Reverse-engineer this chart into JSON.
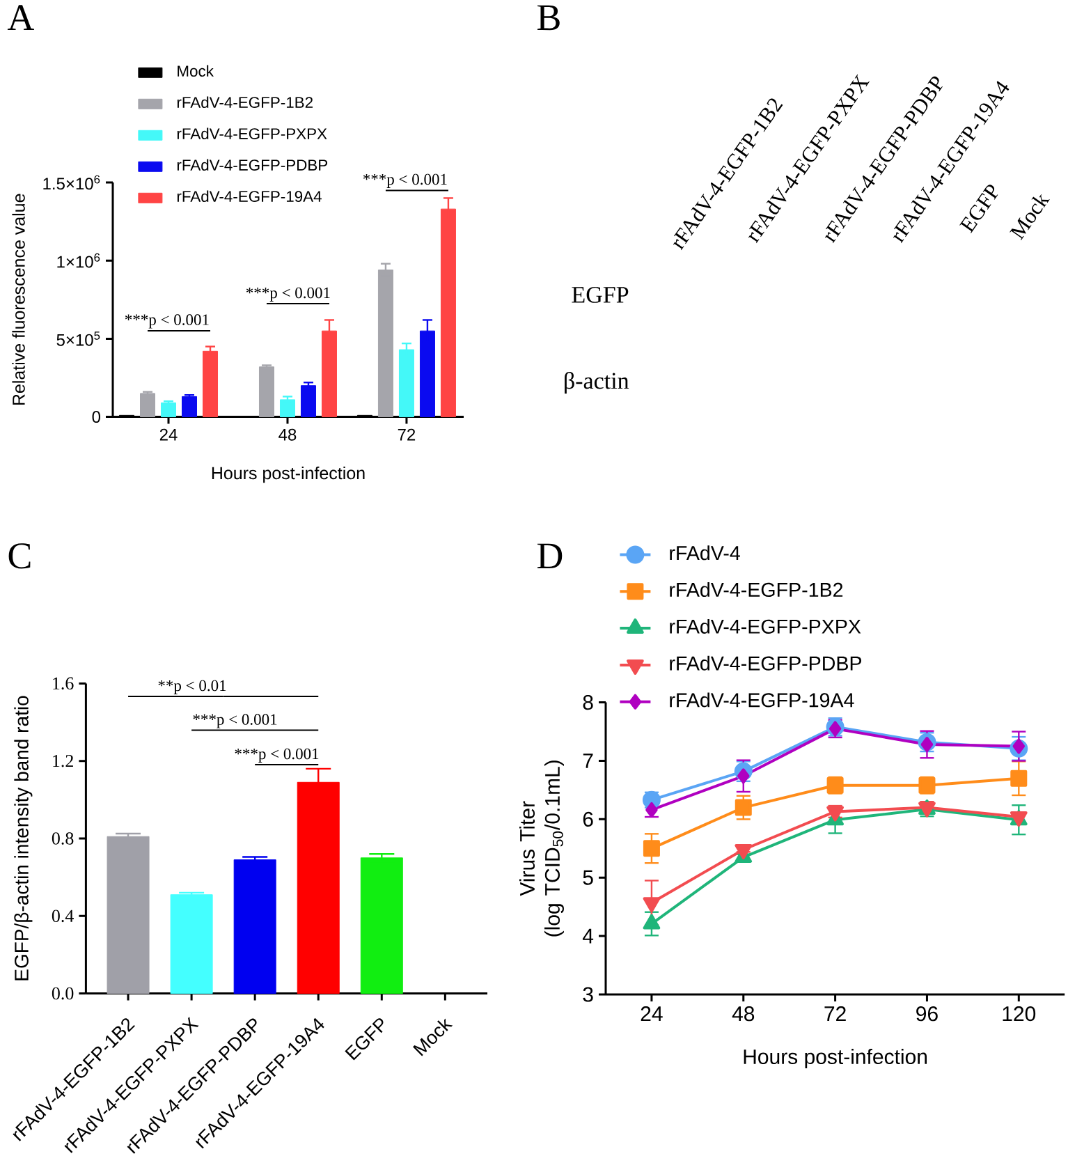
{
  "chart_data": [
    {
      "type": "bar",
      "title": "A",
      "xlabel": "Hours post-infection",
      "ylabel": "Relative fluorescence value",
      "categories": [
        "24",
        "48",
        "72"
      ],
      "series": [
        {
          "name": "Mock",
          "color": "#000000",
          "values": [
            10000,
            0,
            10000
          ]
        },
        {
          "name": "rFAdV-4-EGFP-1B2",
          "color": "#a5a5ab",
          "values": [
            150000,
            320000,
            940000
          ],
          "errors": [
            10000,
            10000,
            40000
          ]
        },
        {
          "name": "rFAdV-4-EGFP-PXPX",
          "color": "#44f8f8",
          "values": [
            90000,
            110000,
            430000
          ],
          "errors": [
            10000,
            20000,
            40000
          ]
        },
        {
          "name": "rFAdV-4-EGFP-PDBP",
          "color": "#0a0af0",
          "values": [
            130000,
            200000,
            550000
          ],
          "errors": [
            10000,
            20000,
            70000
          ]
        },
        {
          "name": "rFAdV-4-EGFP-19A4",
          "color": "#ff4444",
          "values": [
            420000,
            550000,
            1330000
          ],
          "errors": [
            30000,
            70000,
            70000
          ]
        }
      ],
      "ylim": [
        0,
        1500000
      ],
      "yticks": [
        0,
        {
          "value": 500000,
          "label": "5×10$^{5}$"
        },
        {
          "value": 1000000,
          "label": "1×10$^{6}$"
        },
        {
          "value": 1500000,
          "label": "1.5×10$^{6}$"
        }
      ],
      "legend": "top left",
      "annotations": [
        "***p < 0.001",
        "***p < 0.001",
        "***p < 0.001"
      ]
    },
    {
      "type": "other",
      "title": "B",
      "categories": [
        "rFAdV-4-EGFP-1B2",
        "rFAdV-4-EGFP-PXPX",
        "rFAdV-4-EGFP-PDBP",
        "rFAdV-4-EGFP-19A4",
        "EGFP",
        "Mock"
      ],
      "y_categories": [
        "EGFP",
        "β-actin"
      ]
    },
    {
      "type": "bar",
      "title": "C",
      "ylabel": "EGFP/β-actin intensity band ratio",
      "categories": [
        "rFAdV-4-EGFP-1B2",
        "rFAdV-4-EGFP-PXPX",
        "rFAdV-4-EGFP-PDBP",
        "rFAdV-4-EGFP-19A4",
        "EGFP",
        "Mock"
      ],
      "values": [
        0.81,
        0.51,
        0.69,
        1.09,
        0.7,
        0
      ],
      "colors": [
        "#a0a0a8",
        "#44ffff",
        "#0000f0",
        "#ff0000",
        "#11ee11",
        "#000000"
      ],
      "errors": [
        0.015,
        0.01,
        0.015,
        0.07,
        0.02,
        null
      ],
      "ylim": [
        0,
        1.6
      ],
      "yticks": [
        {
          "value": 0,
          "label": "0.0"
        },
        0.4,
        0.8,
        1.2,
        1.6
      ],
      "annotations": [
        "**p < 0.01",
        "***p < 0.001",
        "***p < 0.001"
      ]
    },
    {
      "type": "line",
      "title": "D",
      "xlabel": "Hours post-infection",
      "ylabel": "Virus Titer (log TCID$_{50}$/0.1mL)",
      "x": [
        24,
        48,
        72,
        96,
        120
      ],
      "xlim": [
        12,
        132
      ],
      "xticks": [
        24,
        48,
        72,
        96,
        120
      ],
      "ylim": [
        3,
        8
      ],
      "yticks": [
        3,
        4,
        5,
        6,
        7,
        8
      ],
      "legend": "top left",
      "series": [
        {
          "name": "rFAdV-4",
          "color": "#5aa5f5",
          "marker": "circle",
          "values": [
            6.33,
            6.82,
            7.58,
            7.32,
            7.21
          ],
          "errors": [
            0.13,
            0.17,
            0.15,
            0.16,
            0.2
          ]
        },
        {
          "name": "rFAdV-4-EGFP-1B2",
          "color": "#ff8c1a",
          "marker": "square",
          "values": [
            5.5,
            6.2,
            6.58,
            6.58,
            6.7
          ],
          "errors": [
            0.25,
            0.2,
            0.14,
            0.14,
            0.29
          ]
        },
        {
          "name": "rFAdV-4-EGFP-PXPX",
          "color": "#1fb57a",
          "marker": "triangle",
          "values": [
            4.21,
            5.35,
            5.99,
            6.17,
            5.99
          ],
          "errors": [
            0.2,
            0.05,
            0.23,
            0.12,
            0.25
          ]
        },
        {
          "name": "rFAdV-4-EGFP-PDBP",
          "color": "#f24c50",
          "marker": "triangle-down",
          "values": [
            4.57,
            5.48,
            6.13,
            6.2,
            6.04
          ],
          "errors": [
            0.38,
            0.04,
            0.1,
            0.1,
            null
          ]
        },
        {
          "name": "rFAdV-4-EGFP-19A4",
          "color": "#b000c0",
          "marker": "diamond",
          "values": [
            6.16,
            6.74,
            7.55,
            7.28,
            7.25
          ],
          "errors": [
            0.12,
            0.27,
            0.15,
            0.23,
            0.25
          ]
        }
      ]
    }
  ]
}
